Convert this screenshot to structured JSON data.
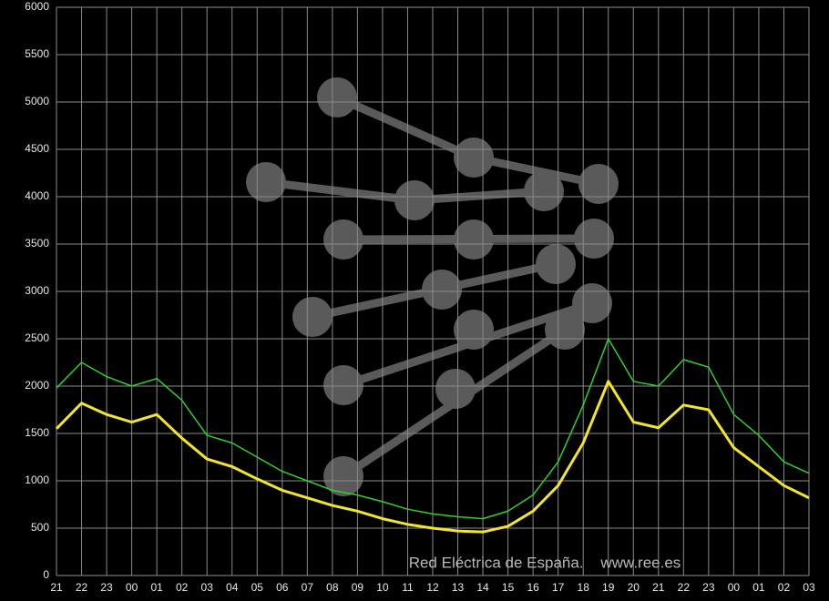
{
  "chart_data": {
    "type": "line",
    "categories": [
      "21",
      "22",
      "23",
      "00",
      "01",
      "02",
      "03",
      "04",
      "05",
      "06",
      "07",
      "08",
      "09",
      "10",
      "11",
      "12",
      "13",
      "14",
      "15",
      "16",
      "17",
      "18",
      "19",
      "20",
      "21",
      "22",
      "23",
      "00",
      "01",
      "02",
      "03"
    ],
    "series": [
      {
        "color": "#2fcf2f",
        "values": [
          1980,
          2250,
          2100,
          2000,
          2080,
          1850,
          1480,
          1400,
          1250,
          1100,
          1000,
          900,
          850,
          780,
          700,
          650,
          620,
          600,
          680,
          850,
          1200,
          1800,
          2500,
          2050,
          2000,
          2280,
          2200,
          1700,
          1480,
          1200,
          1080
        ]
      },
      {
        "color": "#f2e62a",
        "values": [
          1550,
          1820,
          1700,
          1620,
          1700,
          1450,
          1230,
          1150,
          1020,
          900,
          820,
          740,
          680,
          600,
          540,
          500,
          470,
          460,
          520,
          680,
          950,
          1400,
          2050,
          1620,
          1560,
          1800,
          1750,
          1350,
          1150,
          950,
          820
        ]
      }
    ],
    "ylim": [
      0,
      6000
    ],
    "yticks": [
      0,
      500,
      1000,
      1500,
      2000,
      2500,
      3000,
      3500,
      4000,
      4500,
      5000,
      5500,
      6000
    ],
    "grid": true,
    "annotation": "Red Eléctrica de España.    www.ree.es"
  }
}
